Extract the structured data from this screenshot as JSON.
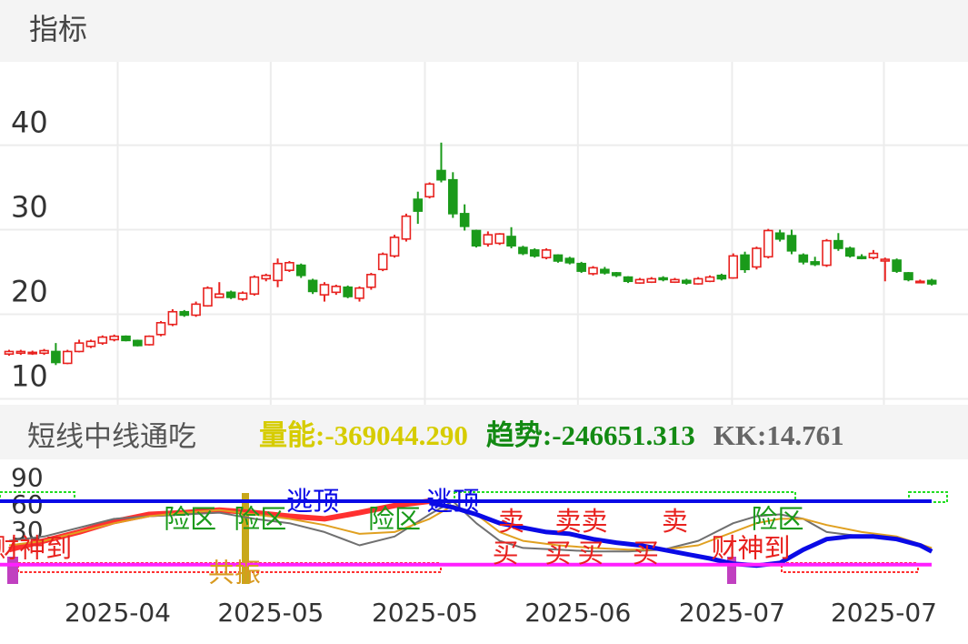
{
  "header": "指标",
  "chart_data": [
    {
      "type": "candlestick",
      "up_color": "#e8221f",
      "down_color": "#1a9a1a",
      "ylim": [
        9.3,
        49.85
      ],
      "yticks": [
        40,
        30,
        20,
        10
      ],
      "grid": true,
      "open": [
        15.3,
        15.4,
        15.4,
        15.4,
        15.6,
        14.2,
        15.6,
        16.2,
        16.6,
        17.0,
        17.4,
        16.9,
        16.4,
        17.6,
        18.8,
        20.3,
        19.9,
        21.0,
        22.0,
        22.6,
        21.8,
        22.4,
        24.2,
        24.0,
        25.2,
        25.8,
        24.0,
        22.3,
        22.6,
        23.2,
        21.9,
        23.2,
        25.3,
        26.9,
        28.9,
        33.6,
        33.9,
        37.0,
        35.9,
        31.9,
        29.9,
        28.3,
        28.4,
        29.2,
        27.9,
        27.6,
        26.7,
        27.0,
        26.6,
        26.0,
        24.8,
        25.3,
        24.9,
        24.4,
        23.7,
        23.8,
        24.3,
        23.8,
        24.0,
        23.6,
        23.9,
        24.6,
        24.3,
        27.0,
        25.6,
        26.8,
        29.6,
        29.3,
        27.0,
        26.2,
        25.8,
        28.7,
        27.8,
        26.8,
        26.7,
        26.3,
        26.4,
        24.9,
        23.8,
        24.0
      ],
      "high": [
        15.8,
        15.8,
        15.7,
        15.9,
        16.6,
        15.8,
        17.0,
        17.0,
        17.5,
        17.6,
        17.5,
        17.0,
        17.5,
        19.2,
        20.6,
        20.5,
        21.5,
        23.3,
        23.8,
        22.8,
        22.7,
        24.6,
        24.8,
        26.6,
        26.3,
        26.0,
        24.2,
        23.8,
        23.5,
        23.4,
        23.3,
        24.9,
        27.3,
        29.4,
        31.9,
        34.5,
        35.6,
        40.3,
        36.8,
        33.0,
        30.0,
        29.8,
        29.6,
        30.3,
        28.1,
        27.8,
        27.8,
        27.1,
        26.8,
        26.2,
        25.7,
        25.6,
        25.0,
        24.5,
        24.3,
        24.4,
        24.5,
        24.3,
        24.2,
        24.4,
        24.6,
        24.8,
        27.2,
        27.4,
        28.0,
        30.1,
        30.0,
        30.0,
        27.2,
        26.8,
        28.9,
        29.6,
        28.0,
        27.1,
        27.6,
        26.7,
        26.6,
        25.0,
        24.1,
        24.2
      ],
      "low": [
        15.1,
        15.2,
        15.2,
        15.2,
        14.0,
        14.1,
        15.5,
        16.0,
        16.4,
        16.8,
        16.8,
        16.2,
        16.3,
        17.4,
        18.6,
        19.7,
        19.7,
        20.9,
        22.0,
        21.8,
        21.6,
        22.2,
        23.9,
        23.2,
        25.0,
        24.3,
        22.4,
        21.5,
        22.3,
        21.9,
        21.5,
        22.9,
        25.1,
        26.7,
        28.6,
        30.7,
        33.7,
        35.6,
        31.4,
        29.9,
        27.9,
        28.0,
        28.2,
        27.8,
        27.0,
        26.7,
        26.5,
        26.1,
        25.9,
        24.9,
        24.6,
        24.7,
        24.4,
        23.7,
        23.6,
        23.7,
        23.9,
        23.7,
        23.5,
        23.5,
        23.8,
        24.0,
        24.2,
        24.9,
        25.3,
        26.6,
        28.6,
        27.1,
        25.9,
        25.7,
        25.6,
        27.5,
        26.7,
        26.5,
        26.5,
        23.9,
        24.9,
        23.9,
        23.7,
        23.4
      ],
      "close": [
        15.6,
        15.6,
        15.5,
        15.7,
        14.3,
        15.6,
        16.6,
        16.8,
        17.3,
        17.4,
        16.9,
        16.3,
        17.4,
        19.0,
        20.3,
        19.9,
        21.2,
        23.1,
        22.4,
        22.0,
        22.5,
        24.4,
        24.6,
        26.0,
        26.1,
        24.6,
        22.7,
        23.5,
        23.3,
        22.1,
        23.1,
        24.7,
        27.1,
        29.1,
        31.6,
        32.2,
        35.4,
        35.9,
        31.9,
        30.4,
        28.1,
        29.4,
        29.5,
        28.1,
        27.2,
        26.9,
        27.6,
        26.3,
        26.1,
        25.1,
        25.5,
        24.9,
        24.6,
        23.9,
        24.1,
        24.2,
        24.1,
        24.1,
        23.7,
        24.2,
        24.4,
        24.2,
        26.9,
        25.3,
        27.8,
        29.9,
        28.9,
        27.5,
        26.2,
        25.9,
        28.7,
        27.8,
        26.9,
        26.6,
        27.2,
        26.5,
        25.1,
        24.1,
        23.9,
        23.6
      ]
    },
    {
      "type": "indicator",
      "title": "短线中线通吃",
      "metrics": [
        {
          "text": "量能:-369044.290",
          "color": "#d6cc00"
        },
        {
          "text": "趋势:-246651.313",
          "color": "#138a13"
        },
        {
          "text": "KK:14.761",
          "color": "#666666"
        }
      ],
      "xlim": [
        -0.778,
        82.1
      ],
      "xticks": [
        {
          "value": 9.3,
          "label": "2025-04"
        },
        {
          "value": 22.4,
          "label": "2025-05"
        },
        {
          "value": 35.6,
          "label": "2025-05"
        },
        {
          "value": 48.7,
          "label": "2025-06"
        },
        {
          "value": 61.9,
          "label": "2025-07"
        },
        {
          "value": 74.9,
          "label": "2025-07"
        }
      ],
      "ylim": [
        -37.1,
        112.4
      ],
      "yticks": [
        90,
        60,
        30
      ],
      "levels": [
        {
          "value": 65,
          "color": "#0a0ae6"
        },
        {
          "value": -7,
          "color": "#ff20ff"
        }
      ],
      "series": [
        {
          "color": "#ff3030",
          "width": 6,
          "x": [
            0,
            3,
            6,
            9,
            12,
            15,
            18,
            21,
            24,
            27,
            30,
            33,
            36
          ],
          "values": [
            10,
            20,
            30,
            42,
            50,
            52,
            55,
            52,
            48,
            45,
            52,
            60,
            65
          ]
        },
        {
          "color": "#707070",
          "width": 2,
          "x": [
            0,
            3,
            6,
            9,
            12,
            15,
            18,
            21,
            24,
            27,
            30,
            33,
            36,
            38,
            40,
            42,
            44,
            47,
            50,
            53,
            56,
            59,
            62,
            64,
            66,
            68,
            70,
            73,
            76,
            79
          ],
          "values": [
            20,
            25,
            35,
            45,
            48,
            50,
            52,
            45,
            40,
            30,
            15,
            25,
            50,
            65,
            40,
            20,
            12,
            10,
            8,
            8,
            10,
            20,
            40,
            48,
            50,
            45,
            30,
            25,
            22,
            10
          ]
        },
        {
          "color": "#e0a020",
          "width": 2,
          "x": [
            0,
            3,
            6,
            9,
            12,
            15,
            18,
            21,
            24,
            27,
            30,
            33,
            36,
            38,
            40,
            42,
            44,
            47,
            50,
            53,
            56,
            59,
            62,
            64,
            66,
            68,
            70,
            73,
            76,
            79
          ],
          "values": [
            15,
            20,
            30,
            40,
            48,
            52,
            55,
            50,
            45,
            38,
            28,
            30,
            45,
            60,
            50,
            30,
            20,
            15,
            12,
            10,
            10,
            15,
            30,
            40,
            45,
            45,
            38,
            30,
            25,
            12
          ]
        },
        {
          "color": "#0a0ae6",
          "width": 5,
          "x": [
            36,
            38,
            40,
            42,
            44,
            46,
            48,
            50,
            52,
            54,
            56,
            58,
            60,
            62,
            64,
            66,
            68,
            70,
            72,
            74,
            76,
            78,
            79
          ],
          "values": [
            63,
            58,
            50,
            40,
            35,
            30,
            28,
            22,
            18,
            15,
            10,
            5,
            0,
            -6,
            -8,
            -5,
            10,
            22,
            25,
            25,
            22,
            15,
            8
          ]
        }
      ],
      "annotations": [
        {
          "text": "财神到",
          "x": 2,
          "y": 10,
          "color": "#e8221f"
        },
        {
          "text": "险区",
          "x": 15.5,
          "y": 43,
          "color": "#1a9a1a"
        },
        {
          "text": "险区",
          "x": 21.5,
          "y": 43,
          "color": "#1a9a1a"
        },
        {
          "text": "逃顶",
          "x": 26,
          "y": 63,
          "color": "#0a0ae6"
        },
        {
          "text": "险区",
          "x": 33,
          "y": 43,
          "color": "#1a9a1a"
        },
        {
          "text": "逃顶",
          "x": 38,
          "y": 63,
          "color": "#0a0ae6"
        },
        {
          "text": "共振",
          "x": 19.3,
          "y": -18,
          "color": "#d89a20"
        },
        {
          "text": "卖",
          "x": 43,
          "y": 40,
          "color": "#e8221f"
        },
        {
          "text": "卖卖",
          "x": 49,
          "y": 40,
          "color": "#e8221f"
        },
        {
          "text": "卖",
          "x": 57,
          "y": 40,
          "color": "#e8221f"
        },
        {
          "text": "买",
          "x": 42.5,
          "y": 4,
          "color": "#e8221f"
        },
        {
          "text": "买",
          "x": 47,
          "y": 4,
          "color": "#e8221f"
        },
        {
          "text": "买",
          "x": 49.8,
          "y": 4,
          "color": "#e8221f"
        },
        {
          "text": "买",
          "x": 54.5,
          "y": 4,
          "color": "#e8221f"
        },
        {
          "text": "财神到",
          "x": 63.5,
          "y": 10,
          "color": "#e8221f"
        },
        {
          "text": "险区",
          "x": 65.8,
          "y": 43,
          "color": "#1a9a1a"
        }
      ]
    }
  ]
}
